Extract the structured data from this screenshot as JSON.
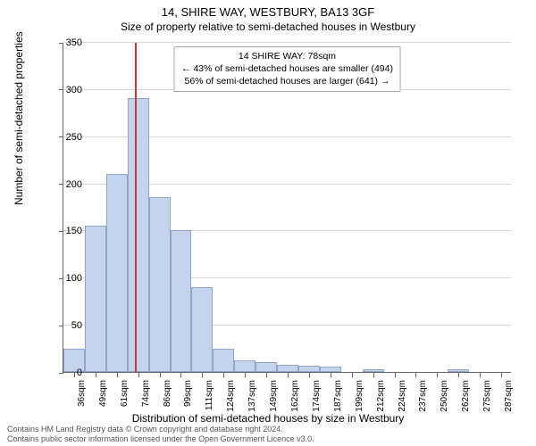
{
  "title": "14, SHIRE WAY, WESTBURY, BA13 3GF",
  "subtitle": "Size of property relative to semi-detached houses in Westbury",
  "ylabel": "Number of semi-detached properties",
  "xlabel": "Distribution of semi-detached houses by size in Westbury",
  "footer_line1": "Contains HM Land Registry data © Crown copyright and database right 2024.",
  "footer_line2": "Contains public sector information licensed under the Open Government Licence v3.0.",
  "info_box": {
    "line1": "14 SHIRE WAY: 78sqm",
    "line2": "← 43% of semi-detached houses are smaller (494)",
    "line3": "56% of semi-detached houses are larger (641) →"
  },
  "chart": {
    "type": "histogram",
    "ylim": [
      0,
      350
    ],
    "ytick_step": 50,
    "x_categories": [
      "36sqm",
      "49sqm",
      "61sqm",
      "74sqm",
      "86sqm",
      "99sqm",
      "111sqm",
      "124sqm",
      "137sqm",
      "149sqm",
      "162sqm",
      "174sqm",
      "187sqm",
      "199sqm",
      "212sqm",
      "224sqm",
      "237sqm",
      "250sqm",
      "262sqm",
      "275sqm",
      "287sqm"
    ],
    "values": [
      25,
      155,
      210,
      290,
      185,
      150,
      90,
      25,
      12,
      10,
      8,
      7,
      6,
      0,
      3,
      0,
      0,
      0,
      3,
      0,
      0
    ],
    "marker_value": 78,
    "x_axis_min": 36,
    "x_axis_step": 12.5,
    "bar_fill": "#c4d4ec",
    "bar_border": "#8ca5c8",
    "marker_color": "#c93636",
    "grid_color": "#d9d9d9",
    "background": "#ffffff",
    "axis_color": "#666666",
    "title_fontsize": 13,
    "subtitle_fontsize": 12,
    "label_fontsize": 12,
    "tick_fontsize": 11
  }
}
